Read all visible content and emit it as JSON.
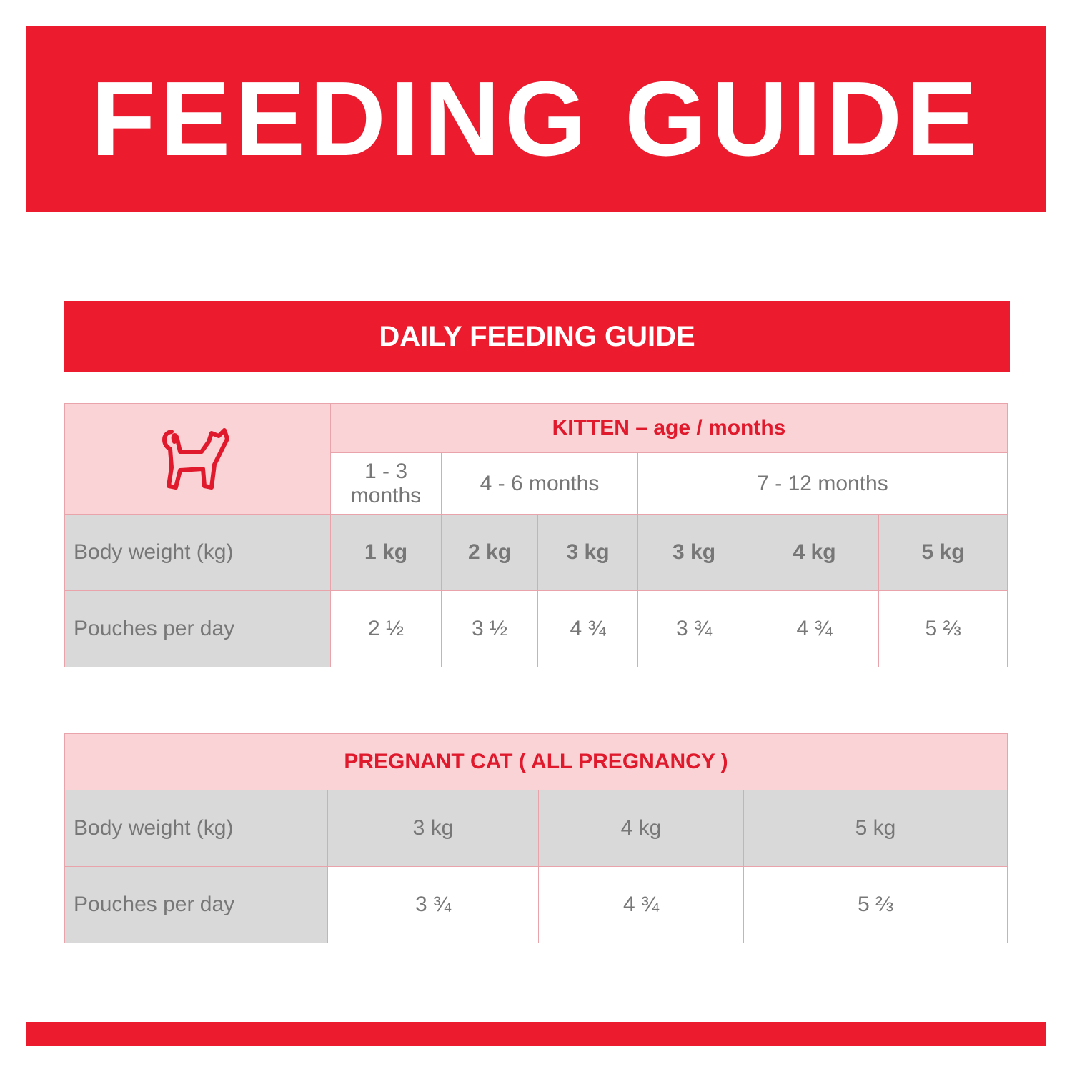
{
  "header": {
    "title": "FEEDING GUIDE"
  },
  "subheader": "DAILY FEEDING GUIDE",
  "kitten_table": {
    "title": "KITTEN – age / months",
    "age_groups": [
      "1 - 3 months",
      "4 - 6 months",
      "7 - 12 months"
    ],
    "rows": [
      [
        "Body weight (kg)",
        "1 kg",
        "2 kg",
        "3 kg",
        "3 kg",
        "4 kg",
        "5 kg"
      ],
      [
        "Pouches per day",
        "2 ½",
        "3 ½",
        "4 ¾",
        "3 ¾",
        "4 ¾",
        "5 ⅔"
      ]
    ]
  },
  "pregnant_table": {
    "title": "PREGNANT CAT ( ALL PREGNANCY )",
    "rows": [
      [
        "Body weight (kg)",
        "3 kg",
        "4 kg",
        "5 kg"
      ],
      [
        "Pouches per day",
        "3 ¾",
        "4 ¾",
        "5 ⅔"
      ]
    ]
  }
}
